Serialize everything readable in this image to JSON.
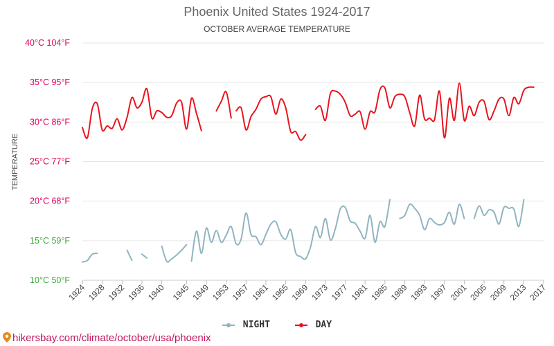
{
  "chart_data": {
    "type": "line",
    "title": "Phoenix United States 1924-2017",
    "subtitle": "OCTOBER AVERAGE TEMPERATURE",
    "ylabel": "TEMPERATURE",
    "xlabel": "",
    "ylim": [
      10,
      40
    ],
    "xlim": [
      1924,
      2017
    ],
    "grid": true,
    "legend_position": "bottom",
    "y_ticks": [
      {
        "value": 40,
        "label": "40°C 104°F",
        "color": "#e0005a"
      },
      {
        "value": 35,
        "label": "35°C 95°F",
        "color": "#e0005a"
      },
      {
        "value": 30,
        "label": "30°C 86°F",
        "color": "#e0005a"
      },
      {
        "value": 25,
        "label": "25°C 77°F",
        "color": "#e0005a"
      },
      {
        "value": 20,
        "label": "20°C 68°F",
        "color": "#e0005a"
      },
      {
        "value": 15,
        "label": "15°C 59°F",
        "color": "#3aaa35"
      },
      {
        "value": 10,
        "label": "10°C 50°F",
        "color": "#3aaa35"
      }
    ],
    "x_ticks": [
      1924,
      1928,
      1932,
      1936,
      1940,
      1945,
      1949,
      1953,
      1957,
      1961,
      1965,
      1969,
      1973,
      1977,
      1981,
      1985,
      1989,
      1993,
      1997,
      2001,
      2005,
      2009,
      2013,
      2017
    ],
    "series": [
      {
        "name": "NIGHT",
        "color": "#90b4c0",
        "segments": [
          [
            [
              1924,
              12.3
            ],
            [
              1925,
              12.5
            ],
            [
              1926,
              13.3
            ],
            [
              1927,
              13.4
            ]
          ],
          [
            [
              1933,
              13.8
            ],
            [
              1934,
              12.5
            ]
          ],
          [
            [
              1936,
              13.3
            ],
            [
              1937,
              12.8
            ]
          ],
          [
            [
              1940,
              14.3
            ],
            [
              1941,
              12.4
            ],
            [
              1942,
              12.7
            ],
            [
              1943,
              13.2
            ],
            [
              1944,
              13.8
            ],
            [
              1945,
              14.5
            ]
          ],
          [
            [
              1946,
              12.4
            ],
            [
              1947,
              16.2
            ],
            [
              1948,
              13.4
            ],
            [
              1949,
              16.6
            ],
            [
              1950,
              14.8
            ],
            [
              1951,
              16.3
            ],
            [
              1952,
              14.8
            ],
            [
              1953,
              15.7
            ],
            [
              1954,
              16.8
            ],
            [
              1955,
              14.6
            ],
            [
              1956,
              15.2
            ],
            [
              1957,
              18.5
            ],
            [
              1958,
              15.8
            ],
            [
              1959,
              15.5
            ],
            [
              1960,
              14.5
            ],
            [
              1961,
              15.8
            ],
            [
              1962,
              17.1
            ],
            [
              1963,
              17.4
            ],
            [
              1964,
              15.8
            ],
            [
              1965,
              15.2
            ],
            [
              1966,
              16.4
            ],
            [
              1967,
              13.5
            ],
            [
              1968,
              13.0
            ],
            [
              1969,
              12.7
            ],
            [
              1970,
              14.2
            ],
            [
              1971,
              16.8
            ],
            [
              1972,
              15.4
            ],
            [
              1973,
              17.8
            ],
            [
              1974,
              15.1
            ],
            [
              1975,
              16.5
            ],
            [
              1976,
              19.0
            ],
            [
              1977,
              19.2
            ],
            [
              1978,
              17.5
            ],
            [
              1979,
              17.2
            ],
            [
              1980,
              16.2
            ],
            [
              1981,
              15.3
            ],
            [
              1982,
              18.2
            ],
            [
              1983,
              14.8
            ],
            [
              1984,
              17.4
            ],
            [
              1985,
              16.8
            ],
            [
              1986,
              20.2
            ]
          ],
          [
            [
              1988,
              17.8
            ],
            [
              1989,
              18.2
            ],
            [
              1990,
              19.6
            ],
            [
              1991,
              19.1
            ],
            [
              1992,
              18.2
            ],
            [
              1993,
              16.4
            ],
            [
              1994,
              17.8
            ],
            [
              1995,
              17.3
            ],
            [
              1996,
              17.0
            ],
            [
              1997,
              17.3
            ],
            [
              1998,
              18.6
            ],
            [
              1999,
              17.1
            ],
            [
              2000,
              19.6
            ],
            [
              2001,
              17.8
            ]
          ],
          [
            [
              2003,
              17.8
            ],
            [
              2004,
              19.4
            ],
            [
              2005,
              18.2
            ],
            [
              2006,
              18.9
            ],
            [
              2007,
              18.6
            ],
            [
              2008,
              17.1
            ],
            [
              2009,
              19.2
            ],
            [
              2010,
              19.1
            ],
            [
              2011,
              19.0
            ],
            [
              2012,
              16.8
            ],
            [
              2013,
              20.2
            ]
          ]
        ]
      },
      {
        "name": "DAY",
        "color": "#e8141e",
        "segments": [
          [
            [
              1924,
              29.3
            ],
            [
              1925,
              28.0
            ],
            [
              1926,
              31.7
            ],
            [
              1927,
              32.3
            ],
            [
              1928,
              29.0
            ],
            [
              1929,
              29.5
            ],
            [
              1930,
              29.2
            ],
            [
              1931,
              30.4
            ],
            [
              1932,
              29.0
            ],
            [
              1933,
              30.6
            ],
            [
              1934,
              33.1
            ],
            [
              1935,
              31.8
            ],
            [
              1936,
              32.5
            ],
            [
              1937,
              34.2
            ],
            [
              1938,
              30.5
            ],
            [
              1939,
              31.4
            ],
            [
              1940,
              31.2
            ],
            [
              1941,
              30.6
            ],
            [
              1942,
              30.8
            ],
            [
              1943,
              32.4
            ],
            [
              1944,
              32.5
            ],
            [
              1945,
              29.1
            ],
            [
              1946,
              33.0
            ],
            [
              1947,
              31.1
            ],
            [
              1948,
              28.9
            ]
          ],
          [
            [
              1951,
              31.4
            ],
            [
              1952,
              32.6
            ],
            [
              1953,
              33.8
            ],
            [
              1954,
              30.5
            ]
          ],
          [
            [
              1955,
              31.4
            ],
            [
              1956,
              31.8
            ],
            [
              1957,
              29.0
            ],
            [
              1958,
              30.7
            ],
            [
              1959,
              31.6
            ],
            [
              1960,
              32.9
            ],
            [
              1961,
              33.2
            ],
            [
              1962,
              33.2
            ],
            [
              1963,
              31.0
            ],
            [
              1964,
              32.9
            ],
            [
              1965,
              31.8
            ],
            [
              1966,
              28.8
            ],
            [
              1967,
              28.8
            ],
            [
              1968,
              27.7
            ],
            [
              1969,
              28.4
            ]
          ],
          [
            [
              1971,
              31.6
            ],
            [
              1972,
              32.0
            ],
            [
              1973,
              30.2
            ],
            [
              1974,
              33.6
            ],
            [
              1975,
              33.9
            ],
            [
              1976,
              33.5
            ],
            [
              1977,
              32.5
            ],
            [
              1978,
              30.8
            ],
            [
              1979,
              31.0
            ],
            [
              1980,
              31.3
            ],
            [
              1981,
              29.1
            ],
            [
              1982,
              31.3
            ],
            [
              1983,
              31.3
            ],
            [
              1984,
              34.1
            ],
            [
              1985,
              34.3
            ],
            [
              1986,
              31.8
            ],
            [
              1987,
              33.2
            ],
            [
              1988,
              33.5
            ],
            [
              1989,
              33.2
            ],
            [
              1990,
              31.2
            ],
            [
              1991,
              29.5
            ],
            [
              1992,
              33.4
            ],
            [
              1993,
              30.4
            ],
            [
              1994,
              30.5
            ],
            [
              1995,
              30.3
            ],
            [
              1996,
              33.9
            ],
            [
              1997,
              28.0
            ],
            [
              1998,
              33.0
            ],
            [
              1999,
              30.2
            ],
            [
              2000,
              34.9
            ],
            [
              2001,
              30.2
            ],
            [
              2002,
              32.0
            ],
            [
              2003,
              30.8
            ],
            [
              2004,
              32.5
            ],
            [
              2005,
              32.6
            ],
            [
              2006,
              30.3
            ],
            [
              2007,
              31.4
            ],
            [
              2008,
              32.9
            ],
            [
              2009,
              32.9
            ],
            [
              2010,
              30.8
            ],
            [
              2011,
              33.1
            ],
            [
              2012,
              32.3
            ],
            [
              2013,
              34.0
            ],
            [
              2014,
              34.4
            ],
            [
              2015,
              34.4
            ]
          ]
        ]
      }
    ]
  },
  "legend": {
    "night_label": "NIGHT",
    "day_label": "DAY"
  },
  "footer": {
    "text": "hikersbay.com/climate/october/usa/phoenix",
    "color": "#c2185b"
  }
}
